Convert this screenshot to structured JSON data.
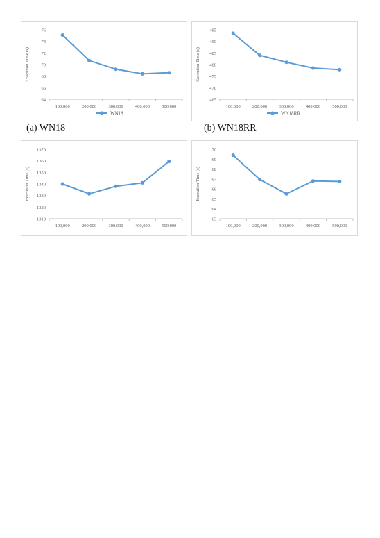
{
  "chart_data": [
    {
      "type": "line",
      "categories": [
        "100,000",
        "200,000",
        "300,000",
        "400,000",
        "500,000"
      ],
      "series": [
        {
          "name": "WN18",
          "values": [
            75.1,
            70.7,
            69.2,
            68.4,
            68.6
          ]
        }
      ],
      "ylabel": "Execution Time (s)",
      "ylim": [
        64,
        76
      ],
      "yticks": [
        64,
        66,
        68,
        70,
        72,
        74,
        76
      ],
      "legend": "bottom",
      "caption": "(a) WN18",
      "color": "#5b9bd5"
    },
    {
      "type": "line",
      "categories": [
        "100,000",
        "200,000",
        "300,000",
        "400,000",
        "500,000"
      ],
      "series": [
        {
          "name": "WN18RR",
          "values": [
            493.5,
            484.0,
            481.0,
            478.5,
            477.8
          ]
        }
      ],
      "ylabel": "Execution Time (s)",
      "ylim": [
        465,
        495
      ],
      "yticks": [
        465,
        470,
        475,
        480,
        485,
        490,
        495
      ],
      "legend": "bottom",
      "caption": "(b) WN18RR",
      "color": "#5b9bd5"
    },
    {
      "type": "line",
      "categories": [
        "100,000",
        "200,000",
        "300,000",
        "400,000",
        "500,000"
      ],
      "series": [
        {
          "values": [
            1340,
            1331.5,
            1338,
            1341,
            1359.5
          ]
        }
      ],
      "ylabel": "Execution Time (s)",
      "ylim": [
        1310,
        1370
      ],
      "yticks": [
        1310,
        1320,
        1330,
        1340,
        1350,
        1360,
        1370
      ],
      "color": "#5b9bd5"
    },
    {
      "type": "line",
      "categories": [
        "100,000",
        "200,000",
        "300,000",
        "400,000",
        "500,000"
      ],
      "series": [
        {
          "values": [
            69.4,
            66.95,
            65.5,
            66.8,
            66.75
          ]
        }
      ],
      "ylabel": "Execution Time (s)",
      "ylim": [
        63,
        70
      ],
      "yticks": [
        63,
        64,
        65,
        66,
        67,
        68,
        69,
        70
      ],
      "color": "#5b9bd5"
    }
  ]
}
